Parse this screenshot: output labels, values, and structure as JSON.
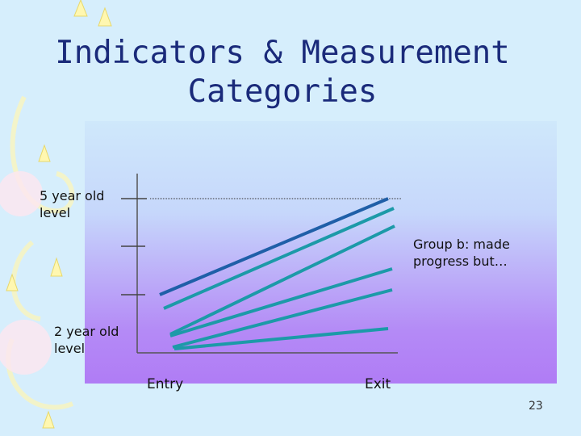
{
  "slide": {
    "title_line1": "Indicators & Measurement",
    "title_line2": "Categories",
    "number": "23"
  },
  "diagram": {
    "label_top": [
      "5 year old",
      "level"
    ],
    "label_bottom": [
      "2 year old",
      "level"
    ],
    "group_label": [
      "Group b: made",
      "progress but…"
    ],
    "x_start_label": "Entry",
    "x_end_label": "Exit"
  },
  "colors": {
    "title": "#1a2a7a",
    "line_primary": "#1f5fa8",
    "line_secondary": "#1c9aa8"
  }
}
